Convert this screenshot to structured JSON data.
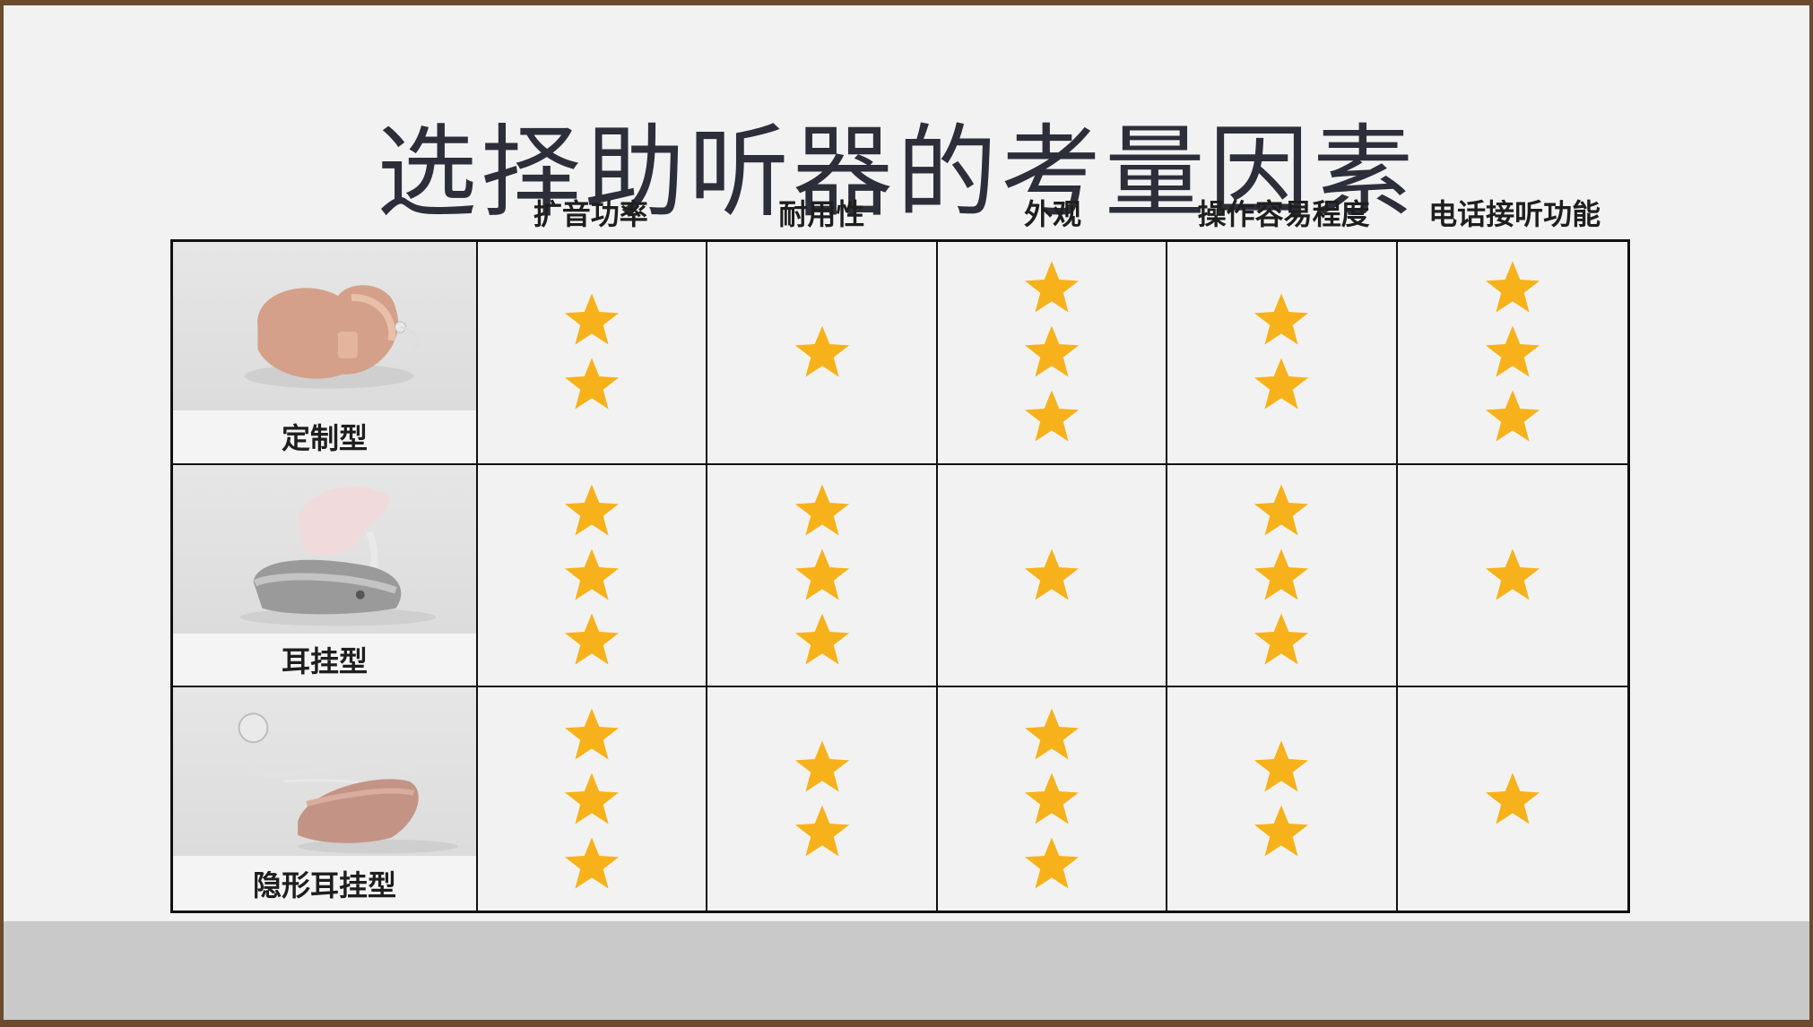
{
  "title": "选择助听器的考量因素",
  "columns": [
    "扩音功率",
    "耐用性",
    "外观",
    "操作容易程度",
    "电话接听功能"
  ],
  "rows": [
    {
      "name": "定制型",
      "image": "custom-hearing-aid",
      "ratings": [
        2,
        1,
        3,
        2,
        3
      ]
    },
    {
      "name": "耳挂型",
      "image": "behind-ear-hearing-aid",
      "ratings": [
        3,
        3,
        1,
        3,
        1
      ]
    },
    {
      "name": "隐形耳挂型",
      "image": "receiver-in-canal-hearing-aid",
      "ratings": [
        3,
        2,
        3,
        2,
        1
      ]
    }
  ],
  "colors": {
    "star": "#f7b21b",
    "title": "#2c2f3a"
  }
}
